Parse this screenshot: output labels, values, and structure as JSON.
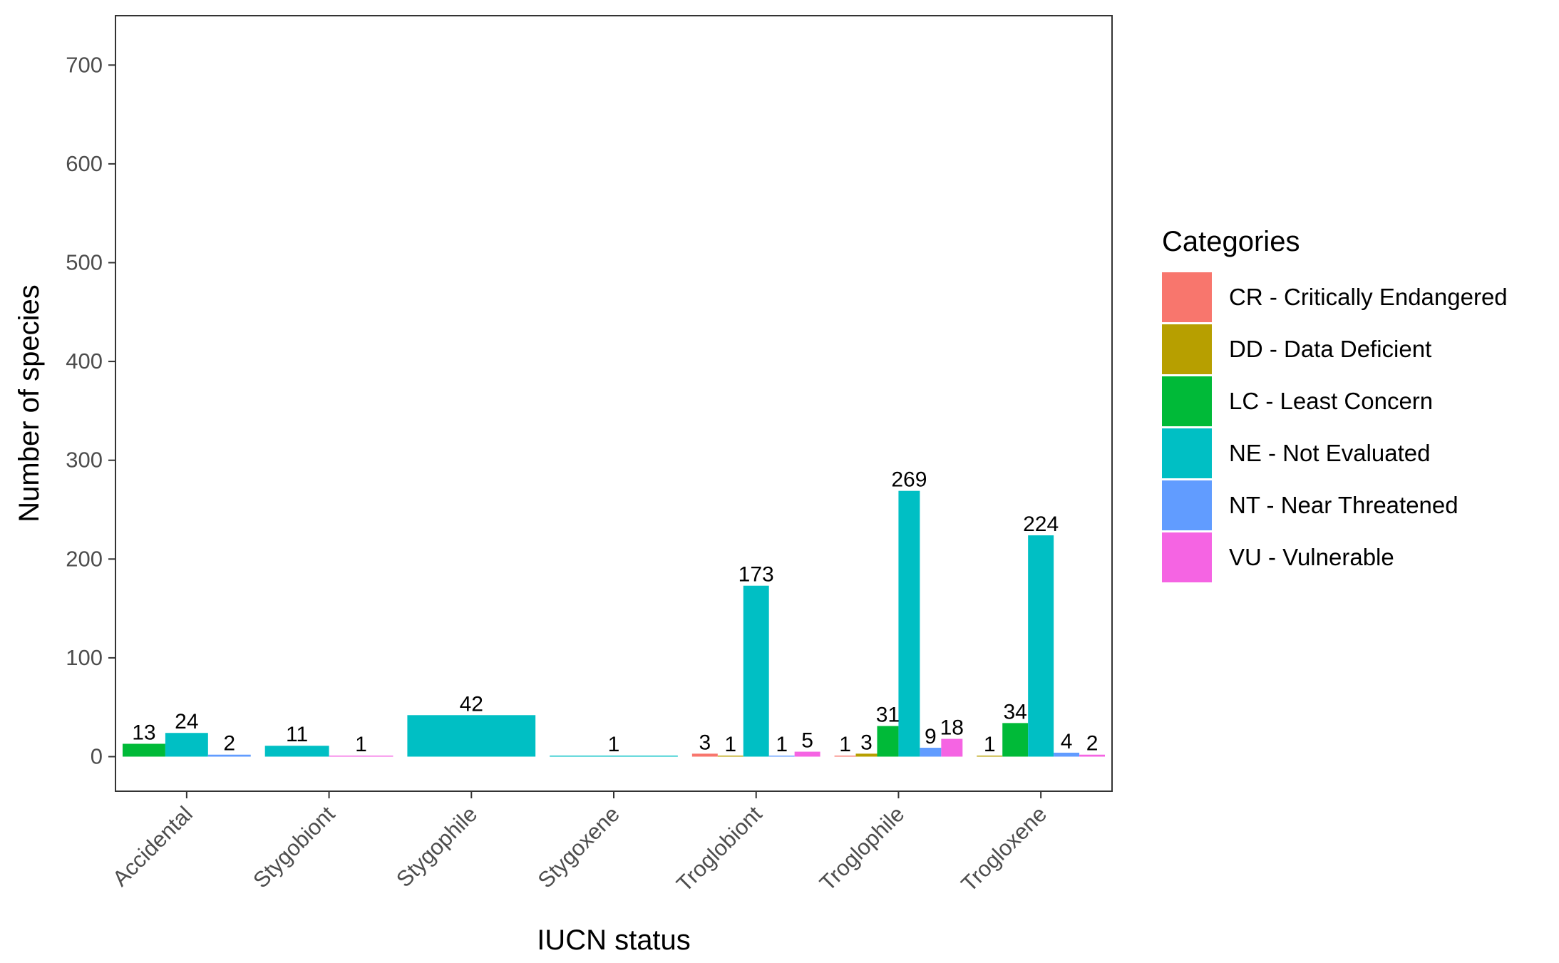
{
  "chart_data": {
    "type": "bar",
    "xlabel": "IUCN status",
    "ylabel": "Number of species",
    "ylim": [
      -35,
      750
    ],
    "yticks": [
      0,
      100,
      200,
      300,
      400,
      500,
      600,
      700
    ],
    "grid": false,
    "legend_position": "right",
    "legend_title": "Categories",
    "categories": [
      "Accidental",
      "Stygobiont",
      "Stygophile",
      "Stygoxene",
      "Troglobiont",
      "Troglophile",
      "Trogloxene"
    ],
    "series": [
      {
        "key": "CR",
        "name": "CR - Critically Endangered",
        "color": "#F8766D"
      },
      {
        "key": "DD",
        "name": "DD - Data Deficient",
        "color": "#B79F00"
      },
      {
        "key": "LC",
        "name": "LC - Least Concern",
        "color": "#00BA38"
      },
      {
        "key": "NE",
        "name": "NE - Not Evaluated",
        "color": "#00BFC4"
      },
      {
        "key": "NT",
        "name": "NT - Near Threatened",
        "color": "#619CFF"
      },
      {
        "key": "VU",
        "name": "VU - Vulnerable",
        "color": "#F564E3"
      }
    ],
    "groups": [
      {
        "category": "Accidental",
        "bars": [
          {
            "series": "LC",
            "value": 13
          },
          {
            "series": "NE",
            "value": 24
          },
          {
            "series": "NT",
            "value": 2
          }
        ]
      },
      {
        "category": "Stygobiont",
        "bars": [
          {
            "series": "NE",
            "value": 11
          },
          {
            "series": "VU",
            "value": 1
          }
        ]
      },
      {
        "category": "Stygophile",
        "bars": [
          {
            "series": "NE",
            "value": 42
          }
        ]
      },
      {
        "category": "Stygoxene",
        "bars": [
          {
            "series": "NE",
            "value": 1
          }
        ]
      },
      {
        "category": "Troglobiont",
        "bars": [
          {
            "series": "CR",
            "value": 3
          },
          {
            "series": "DD",
            "value": 1
          },
          {
            "series": "NE",
            "value": 173
          },
          {
            "series": "NT",
            "value": 1
          },
          {
            "series": "VU",
            "value": 5
          }
        ]
      },
      {
        "category": "Troglophile",
        "bars": [
          {
            "series": "CR",
            "value": 1
          },
          {
            "series": "DD",
            "value": 3
          },
          {
            "series": "LC",
            "value": 31
          },
          {
            "series": "NE",
            "value": 269
          },
          {
            "series": "NT",
            "value": 9
          },
          {
            "series": "VU",
            "value": 18
          }
        ]
      },
      {
        "category": "Trogloxene",
        "bars": [
          {
            "series": "DD",
            "value": 1
          },
          {
            "series": "LC",
            "value": 34
          },
          {
            "series": "NE",
            "value": 224
          },
          {
            "series": "NT",
            "value": 4
          },
          {
            "series": "VU",
            "value": 2
          }
        ]
      }
    ]
  }
}
